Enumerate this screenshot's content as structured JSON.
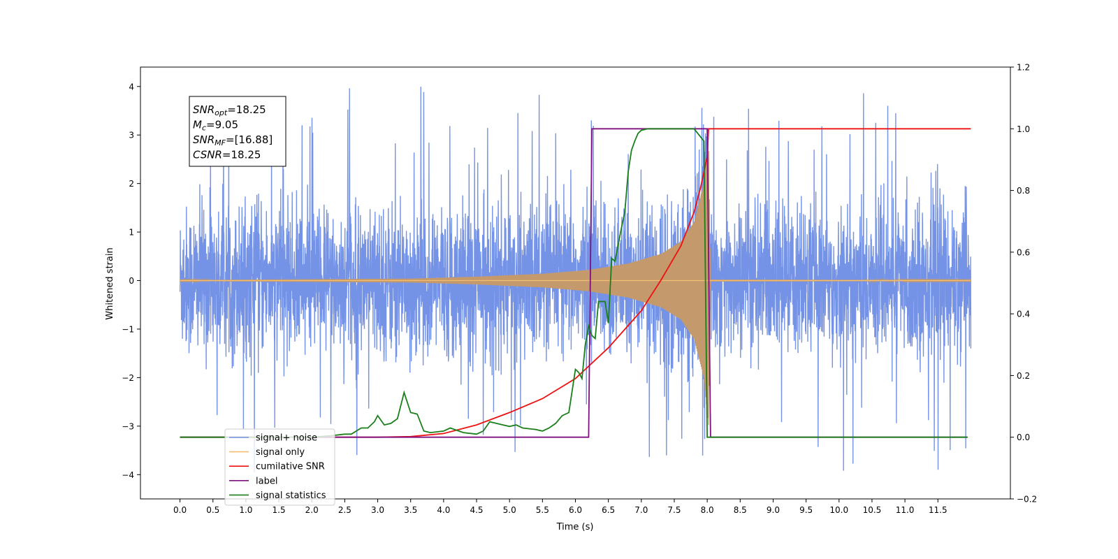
{
  "chart_data": {
    "type": "line",
    "title": "",
    "xlabel": "Time (s)",
    "ylabel": "Whitened strain",
    "y2label": "",
    "xlim": [
      -0.6,
      12.6
    ],
    "ylim": [
      -4.5,
      4.4
    ],
    "y2lim": [
      -0.2,
      1.2
    ],
    "xticks": [
      0.0,
      0.5,
      1.0,
      1.5,
      2.0,
      2.5,
      3.0,
      3.5,
      4.0,
      4.5,
      5.0,
      5.5,
      6.0,
      6.5,
      7.0,
      7.5,
      8.0,
      8.5,
      9.0,
      9.5,
      10.0,
      10.5,
      11.0,
      11.5
    ],
    "yticks": [
      -4,
      -3,
      -2,
      -1,
      0,
      1,
      2,
      3,
      4
    ],
    "y2ticks": [
      -0.2,
      0.0,
      0.2,
      0.4,
      0.6,
      0.8,
      1.0,
      1.2
    ],
    "grid": false,
    "legend_position": "lower-left",
    "annotation": {
      "lines": [
        {
          "label": "SNR",
          "sub": "opt",
          "value": "=18.25"
        },
        {
          "label": "M",
          "sub": "c",
          "value": "=9.05"
        },
        {
          "label": "SNR",
          "sub": "MF",
          "value": "=[16.88]"
        },
        {
          "label": "CSNR",
          "sub": "",
          "value": "=18.25"
        }
      ]
    },
    "series": [
      {
        "name": "signal+ noise",
        "axis": "left",
        "color": "#7593e6",
        "description_kind": "noise",
        "x_range": [
          0.0,
          12.0
        ],
        "envelope_sigma": 0.75,
        "spike_max": 4.0,
        "spike_min": -4.15
      },
      {
        "name": "signal only",
        "axis": "left",
        "color": "#f5be6f",
        "description_kind": "chirp",
        "x_range": [
          0.0,
          12.0
        ],
        "amplitude_points": [
          {
            "t": 0.0,
            "a": 0.01
          },
          {
            "t": 3.5,
            "a": 0.04
          },
          {
            "t": 4.5,
            "a": 0.08
          },
          {
            "t": 5.5,
            "a": 0.14
          },
          {
            "t": 6.2,
            "a": 0.22
          },
          {
            "t": 6.8,
            "a": 0.35
          },
          {
            "t": 7.3,
            "a": 0.55
          },
          {
            "t": 7.6,
            "a": 0.8
          },
          {
            "t": 7.8,
            "a": 1.2
          },
          {
            "t": 7.95,
            "a": 2.0
          },
          {
            "t": 8.02,
            "a": 3.0
          },
          {
            "t": 8.05,
            "a": 0.02
          },
          {
            "t": 12.0,
            "a": 0.01
          }
        ]
      },
      {
        "name": "cumilative SNR",
        "axis": "right",
        "color": "#ee1111",
        "x": [
          0.0,
          3.0,
          3.5,
          4.0,
          4.5,
          5.0,
          5.5,
          6.0,
          6.5,
          7.0,
          7.3,
          7.6,
          7.8,
          7.9,
          8.0,
          8.02,
          12.0
        ],
        "y": [
          0.0,
          0.0,
          0.002,
          0.012,
          0.04,
          0.08,
          0.125,
          0.19,
          0.29,
          0.41,
          0.51,
          0.62,
          0.73,
          0.81,
          0.91,
          1.0,
          1.0
        ]
      },
      {
        "name": "label",
        "axis": "right",
        "color": "#7f1080",
        "x": [
          0.0,
          6.2,
          6.25,
          8.0,
          8.05,
          11.95
        ],
        "y": [
          0.0,
          0.0,
          1.0,
          1.0,
          0.0,
          0.0
        ]
      },
      {
        "name": "signal statistics",
        "axis": "right",
        "color": "#1a7f1a",
        "x": [
          0.0,
          2.0,
          2.3,
          2.5,
          2.6,
          2.75,
          2.85,
          2.95,
          3.0,
          3.1,
          3.2,
          3.3,
          3.4,
          3.5,
          3.6,
          3.7,
          3.8,
          4.0,
          4.1,
          4.3,
          4.5,
          4.6,
          4.7,
          4.8,
          4.9,
          5.0,
          5.1,
          5.2,
          5.4,
          5.5,
          5.6,
          5.7,
          5.8,
          5.9,
          6.0,
          6.05,
          6.1,
          6.15,
          6.2,
          6.25,
          6.3,
          6.35,
          6.45,
          6.5,
          6.55,
          6.6,
          6.7,
          6.75,
          6.8,
          6.85,
          6.9,
          6.95,
          7.0,
          7.1,
          7.2,
          7.4,
          7.6,
          7.8,
          7.95,
          8.0,
          8.02,
          8.05,
          11.95
        ],
        "y": [
          0.0,
          0.0,
          0.005,
          0.01,
          0.01,
          0.03,
          0.03,
          0.05,
          0.07,
          0.04,
          0.045,
          0.06,
          0.145,
          0.08,
          0.075,
          0.02,
          0.015,
          0.02,
          0.03,
          0.015,
          0.01,
          0.02,
          0.05,
          0.045,
          0.04,
          0.035,
          0.04,
          0.03,
          0.025,
          0.02,
          0.03,
          0.045,
          0.07,
          0.08,
          0.22,
          0.21,
          0.19,
          0.3,
          0.36,
          0.33,
          0.32,
          0.44,
          0.44,
          0.37,
          0.58,
          0.57,
          0.68,
          0.73,
          0.86,
          0.93,
          0.96,
          0.985,
          0.995,
          1.0,
          1.0,
          1.0,
          1.0,
          1.0,
          0.96,
          0.0,
          0.0,
          0.0,
          0.0
        ]
      }
    ]
  }
}
